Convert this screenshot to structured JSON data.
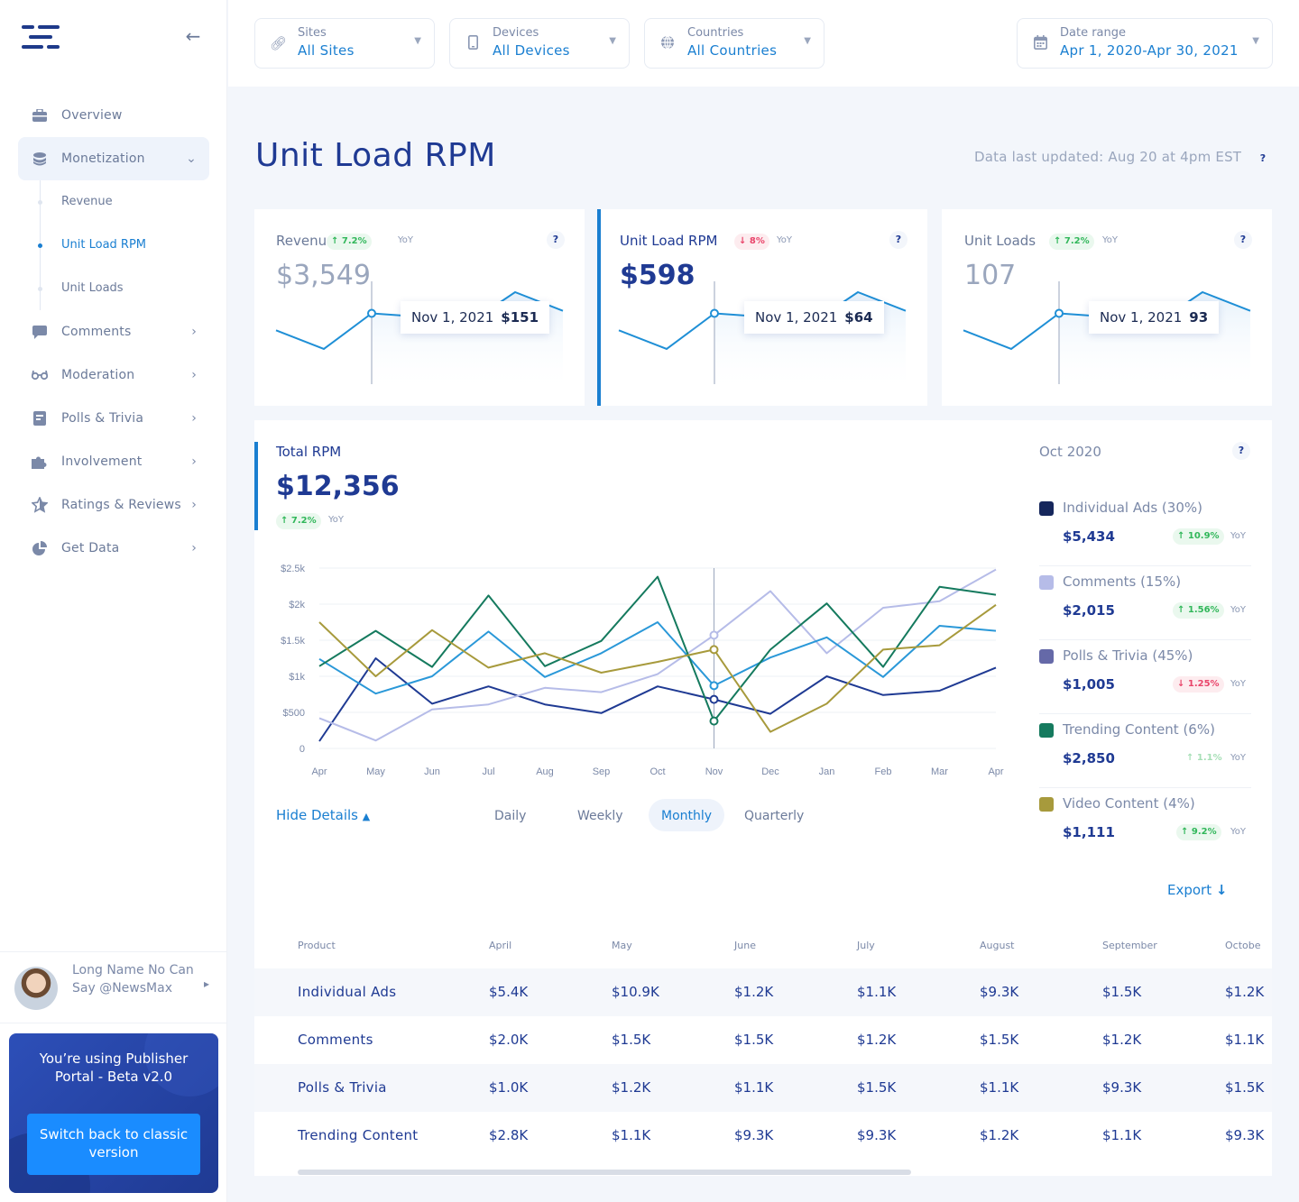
{
  "sidebar": {
    "nav": [
      {
        "label": "Overview",
        "icon": "briefcase-icon"
      },
      {
        "label": "Monetization",
        "icon": "coins-icon",
        "open": true,
        "children": [
          {
            "label": "Revenue"
          },
          {
            "label": "Unit Load RPM",
            "active": true
          },
          {
            "label": "Unit Loads"
          }
        ]
      },
      {
        "label": "Comments",
        "icon": "chat-icon"
      },
      {
        "label": "Moderation",
        "icon": "glasses-icon"
      },
      {
        "label": "Polls & Trivia",
        "icon": "poll-icon"
      },
      {
        "label": "Involvement",
        "icon": "puzzle-icon"
      },
      {
        "label": "Ratings & Reviews",
        "icon": "star-icon"
      },
      {
        "label": "Get Data",
        "icon": "pie-icon"
      }
    ],
    "user": {
      "name": "Long Name No Can Say @NewsMax"
    },
    "beta": {
      "text": "You’re using Publisher Portal  - Beta v2.0",
      "button": "Switch back to classic version"
    }
  },
  "filters": {
    "sites": {
      "label": "Sites",
      "value": "All Sites"
    },
    "devices": {
      "label": "Devices",
      "value": "All Devices"
    },
    "countries": {
      "label": "Countries",
      "value": "All Countries"
    },
    "date": {
      "label": "Date range",
      "value": "Apr 1, 2020-Apr 30, 2021"
    }
  },
  "page": {
    "title": "Unit Load RPM",
    "updated": "Data last updated: Aug 20 at 4pm EST",
    "help": "?"
  },
  "cards": [
    {
      "name": "Revenue",
      "change": "7.2%",
      "direction": "up",
      "yoy": "YoY",
      "value": "$3,549",
      "tip_date": "Nov 1, 2021",
      "tip_value": "$151",
      "help": "?"
    },
    {
      "name": "Unit Load RPM",
      "change": "8%",
      "direction": "down",
      "yoy": "YoY",
      "value": "$598",
      "tip_date": "Nov 1, 2021",
      "tip_value": "$64",
      "help": "?"
    },
    {
      "name": "Unit Loads",
      "change": "7.2%",
      "direction": "up",
      "yoy": "YoY",
      "value": "107",
      "tip_date": "Nov 1, 2021",
      "tip_value": "93",
      "help": "?"
    }
  ],
  "sparkline": {
    "values": [
      0.55,
      0.33,
      0.75,
      0.71,
      0.62,
      1.0,
      0.78
    ],
    "hover_index": 2
  },
  "total": {
    "title": "Total RPM",
    "value": "$12,356",
    "change": "7.2%",
    "yoy": "YoY"
  },
  "chart_data": {
    "type": "line",
    "categories": [
      "Apr",
      "May",
      "Jun",
      "Jul",
      "Aug",
      "Sep",
      "Oct",
      "Nov",
      "Dec",
      "Jan",
      "Feb",
      "Mar",
      "Apr"
    ],
    "ylim": [
      0,
      2500
    ],
    "yticks": [
      "0",
      "$500",
      "$1k",
      "$1.5k",
      "$2k",
      "$2.5k"
    ],
    "hover_index": 7,
    "series": [
      {
        "name": "Individual Ads",
        "color": "#1f3a93",
        "values": [
          100,
          1250,
          620,
          860,
          610,
          490,
          860,
          680,
          480,
          1000,
          740,
          800,
          1120
        ]
      },
      {
        "name": "Comments",
        "color": "#b6bce8",
        "values": [
          420,
          110,
          540,
          610,
          840,
          780,
          1030,
          1570,
          2180,
          1320,
          1950,
          2040,
          2480
        ]
      },
      {
        "name": "Polls & Trivia",
        "color": "#2a98d8",
        "values": [
          1240,
          760,
          1000,
          1620,
          990,
          1320,
          1750,
          870,
          1260,
          1540,
          990,
          1700,
          1630
        ]
      },
      {
        "name": "Trending Content",
        "color": "#157a5e",
        "values": [
          1140,
          1630,
          1130,
          2120,
          1140,
          1490,
          2380,
          380,
          1370,
          2010,
          1130,
          2240,
          2130
        ]
      },
      {
        "name": "Video Content",
        "color": "#a79a3c",
        "values": [
          1750,
          1000,
          1640,
          1120,
          1320,
          1050,
          1200,
          1370,
          230,
          620,
          1370,
          1430,
          1990
        ]
      }
    ]
  },
  "legend": {
    "month": "Oct 2020",
    "help": "?",
    "items": [
      {
        "name": "Individual Ads (30%)",
        "value": "$5,434",
        "change": "10.9%",
        "direction": "up",
        "yoy": "YoY",
        "color": "#16275c"
      },
      {
        "name": "Comments (15%)",
        "value": "$2,015",
        "change": "1.56%",
        "direction": "up",
        "yoy": "YoY",
        "color": "#b6bce8"
      },
      {
        "name": "Polls & Trivia (45%)",
        "value": "$1,005",
        "change": "1.25%",
        "direction": "down",
        "yoy": "YoY",
        "color": "#6569a8"
      },
      {
        "name": "Trending Content (6%)",
        "value": "$2,850",
        "change": "1.1%",
        "direction": "up-faint",
        "yoy": "YoY",
        "color": "#157a5e"
      },
      {
        "name": "Video Content (4%)",
        "value": "$1,111",
        "change": "9.2%",
        "direction": "up",
        "yoy": "YoY",
        "color": "#a79a3c"
      }
    ]
  },
  "controls": {
    "hide_details": "Hide Details",
    "tabs": [
      "Daily",
      "Weekly",
      "Monthly",
      "Quarterly"
    ],
    "active_tab": "Monthly",
    "export": "Export"
  },
  "table": {
    "headers": [
      "Product",
      "April",
      "May",
      "June",
      "July",
      "August",
      "September",
      "Octobe"
    ],
    "rows": [
      [
        "Individual Ads",
        "$5.4K",
        "$10.9K",
        "$1.2K",
        "$1.1K",
        "$9.3K",
        "$1.5K",
        "$1.2K"
      ],
      [
        "Comments",
        "$2.0K",
        "$1.5K",
        "$1.5K",
        "$1.2K",
        "$1.5K",
        "$1.2K",
        "$1.1K"
      ],
      [
        "Polls & Trivia",
        "$1.0K",
        "$1.2K",
        "$1.1K",
        "$1.5K",
        "$1.1K",
        "$9.3K",
        "$1.5K"
      ],
      [
        "Trending Content",
        "$2.8K",
        "$1.1K",
        "$9.3K",
        "$9.3K",
        "$1.2K",
        "$1.1K",
        "$9.3K"
      ]
    ]
  }
}
